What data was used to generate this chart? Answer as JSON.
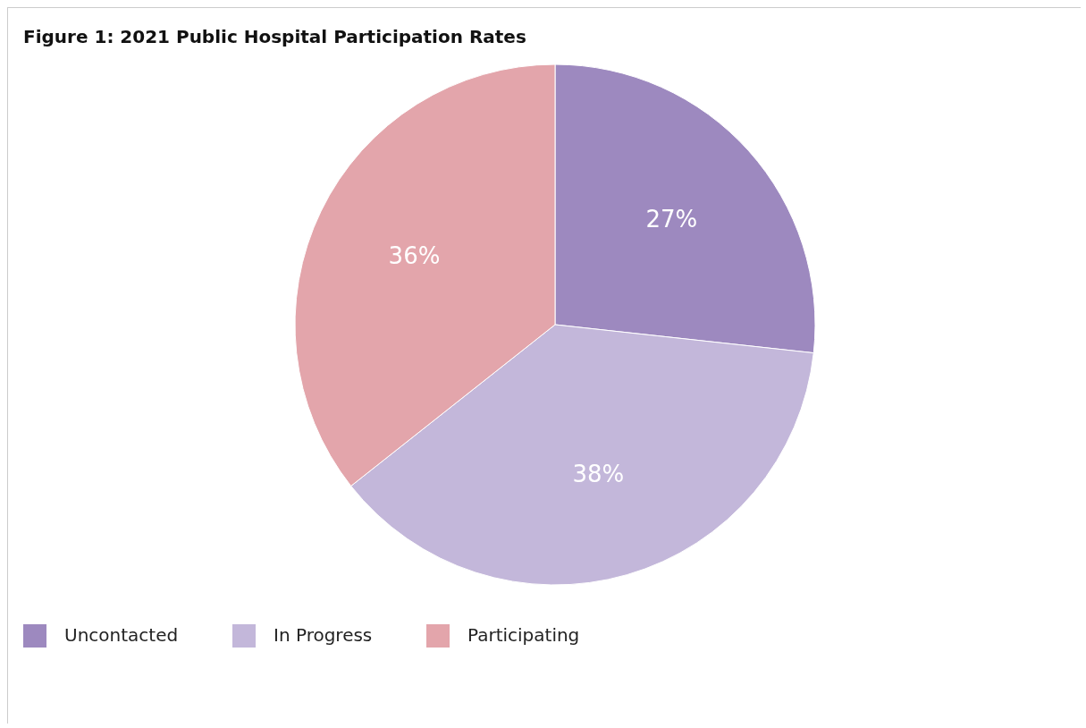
{
  "chart_data": {
    "type": "pie",
    "title": "Figure 1: 2021 Public Hospital Participation Rates",
    "categories": [
      "Uncontacted",
      "In Progress",
      "Participating"
    ],
    "values": [
      27,
      38,
      36
    ],
    "colors": [
      "#9d89bf",
      "#c3b7da",
      "#e3a5ab"
    ],
    "value_labels": [
      "27%",
      "38%",
      "36%"
    ],
    "legend": "bottom"
  }
}
